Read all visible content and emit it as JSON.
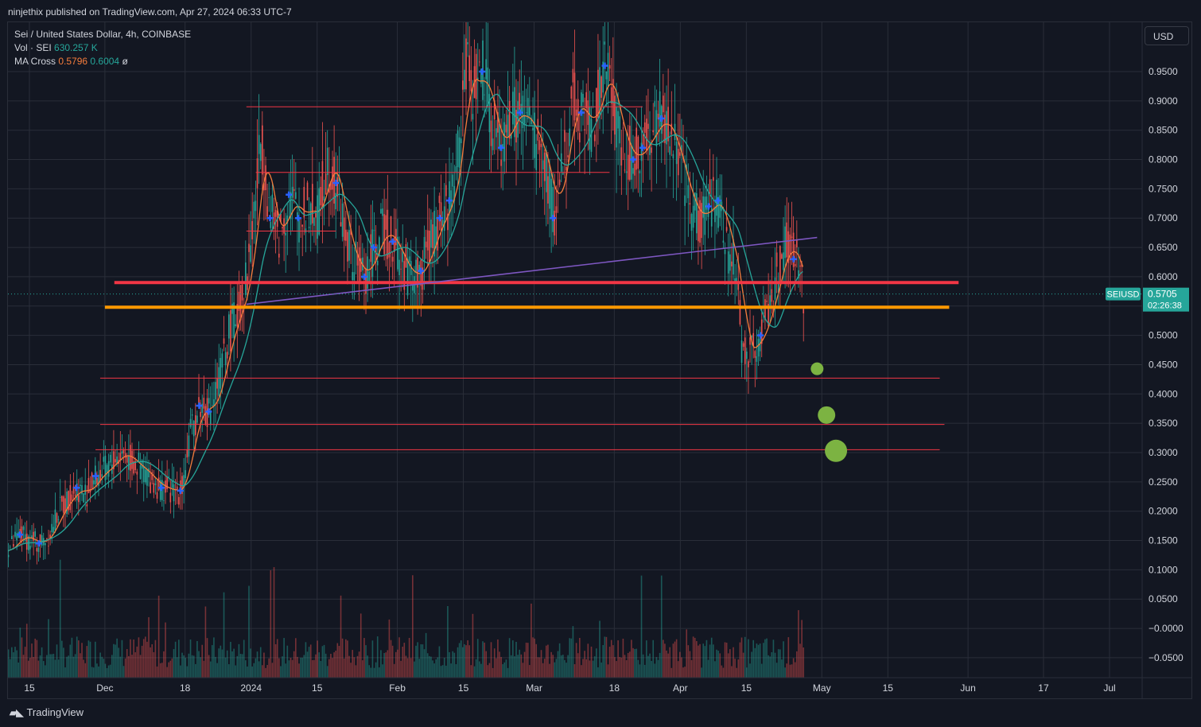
{
  "header": {
    "published_by": "ninjethix published on TradingView.com, Apr 27, 2024 06:33 UTC-7"
  },
  "legend": {
    "symbol": "Sei / United States Dollar, 4h, COINBASE",
    "vol_label": "Vol · SEI",
    "vol_value": "630.257 K",
    "ma_label": "MA Cross",
    "ma_fast": "0.5796",
    "ma_slow": "0.6004",
    "ma_extra": "ø"
  },
  "toolbar": {
    "currency": "USD"
  },
  "price_tag": {
    "symbol": "SEIUSD",
    "price": "0.5705",
    "countdown": "02:26:38"
  },
  "footer": {
    "brand": "TradingView"
  },
  "colors": {
    "background": "#131722",
    "up": "#26a69a",
    "down": "#ef5350",
    "ma_fast": "#f57c3c",
    "ma_slow": "#26a69a",
    "cross_marker": "#2962ff",
    "support_red": "#f23645",
    "support_orange": "#ff9800",
    "trendline": "#7e57c2",
    "target_dot": "#7cb342"
  },
  "chart_data": {
    "type": "candlestick",
    "symbol": "SEIUSD",
    "timeframe": "4h",
    "exchange": "COINBASE",
    "currency": "USD",
    "yaxis": {
      "ticks": [
        "0.9500",
        "0.9000",
        "0.8500",
        "0.8000",
        "0.7500",
        "0.7000",
        "0.6500",
        "0.6000",
        "0.5500",
        "0.5000",
        "0.4500",
        "0.4000",
        "0.3500",
        "0.3000",
        "0.2500",
        "0.2000",
        "0.1500",
        "0.1000",
        "0.0500",
        "−0.0000",
        "−0.0500"
      ],
      "tick_values": [
        0.95,
        0.9,
        0.85,
        0.8,
        0.75,
        0.7,
        0.65,
        0.6,
        0.55,
        0.5,
        0.45,
        0.4,
        0.35,
        0.3,
        0.25,
        0.2,
        0.15,
        0.1,
        0.05,
        0,
        -0.05
      ],
      "range": [
        -0.085,
        1.01
      ]
    },
    "xaxis": {
      "ticks": [
        {
          "label": "15",
          "date": "2023-11-15"
        },
        {
          "label": "Dec",
          "date": "2023-12-01"
        },
        {
          "label": "18",
          "date": "2023-12-18"
        },
        {
          "label": "2024",
          "date": "2024-01-01"
        },
        {
          "label": "15",
          "date": "2024-01-15"
        },
        {
          "label": "Feb",
          "date": "2024-02-01"
        },
        {
          "label": "15",
          "date": "2024-02-15"
        },
        {
          "label": "Mar",
          "date": "2024-03-01"
        },
        {
          "label": "18",
          "date": "2024-03-18"
        },
        {
          "label": "Apr",
          "date": "2024-04-01"
        },
        {
          "label": "15",
          "date": "2024-04-15"
        },
        {
          "label": "May",
          "date": "2024-05-01"
        },
        {
          "label": "15",
          "date": "2024-05-15"
        },
        {
          "label": "Jun",
          "date": "2024-06-01"
        },
        {
          "label": "17",
          "date": "2024-06-17"
        },
        {
          "label": "Jul",
          "date": "2024-07-01"
        }
      ]
    },
    "price_path": [
      [
        "2023-11-09",
        0.128
      ],
      [
        "2023-11-11",
        0.14
      ],
      [
        "2023-11-13",
        0.16
      ],
      [
        "2023-11-15",
        0.15
      ],
      [
        "2023-11-17",
        0.145
      ],
      [
        "2023-11-19",
        0.16
      ],
      [
        "2023-11-21",
        0.2
      ],
      [
        "2023-11-23",
        0.22
      ],
      [
        "2023-11-25",
        0.24
      ],
      [
        "2023-11-27",
        0.23
      ],
      [
        "2023-11-29",
        0.26
      ],
      [
        "2023-12-01",
        0.27
      ],
      [
        "2023-12-03",
        0.29
      ],
      [
        "2023-12-05",
        0.3
      ],
      [
        "2023-12-07",
        0.28
      ],
      [
        "2023-12-09",
        0.27
      ],
      [
        "2023-12-11",
        0.25
      ],
      [
        "2023-12-13",
        0.24
      ],
      [
        "2023-12-15",
        0.235
      ],
      [
        "2023-12-17",
        0.235
      ],
      [
        "2023-12-19",
        0.33
      ],
      [
        "2023-12-21",
        0.38
      ],
      [
        "2023-12-23",
        0.37
      ],
      [
        "2023-12-25",
        0.42
      ],
      [
        "2023-12-27",
        0.5
      ],
      [
        "2023-12-29",
        0.54
      ],
      [
        "2023-12-31",
        0.6
      ],
      [
        "2024-01-02",
        0.75
      ],
      [
        "2024-01-03",
        0.84
      ],
      [
        "2024-01-05",
        0.7
      ],
      [
        "2024-01-07",
        0.67
      ],
      [
        "2024-01-09",
        0.74
      ],
      [
        "2024-01-11",
        0.7
      ],
      [
        "2024-01-13",
        0.72
      ],
      [
        "2024-01-15",
        0.7
      ],
      [
        "2024-01-17",
        0.8
      ],
      [
        "2024-01-19",
        0.76
      ],
      [
        "2024-01-21",
        0.66
      ],
      [
        "2024-01-23",
        0.62
      ],
      [
        "2024-01-25",
        0.6
      ],
      [
        "2024-01-27",
        0.65
      ],
      [
        "2024-01-29",
        0.68
      ],
      [
        "2024-01-31",
        0.66
      ],
      [
        "2024-02-02",
        0.62
      ],
      [
        "2024-02-04",
        0.6
      ],
      [
        "2024-02-06",
        0.61
      ],
      [
        "2024-02-08",
        0.66
      ],
      [
        "2024-02-10",
        0.7
      ],
      [
        "2024-02-12",
        0.73
      ],
      [
        "2024-02-14",
        0.82
      ],
      [
        "2024-02-15",
        0.96
      ],
      [
        "2024-02-17",
        0.92
      ],
      [
        "2024-02-19",
        0.95
      ],
      [
        "2024-02-21",
        0.86
      ],
      [
        "2024-02-23",
        0.82
      ],
      [
        "2024-02-25",
        0.87
      ],
      [
        "2024-02-27",
        0.88
      ],
      [
        "2024-02-29",
        0.86
      ],
      [
        "2024-03-02",
        0.82
      ],
      [
        "2024-03-04",
        0.76
      ],
      [
        "2024-03-05",
        0.7
      ],
      [
        "2024-03-07",
        0.8
      ],
      [
        "2024-03-09",
        0.9
      ],
      [
        "2024-03-11",
        0.88
      ],
      [
        "2024-03-13",
        0.86
      ],
      [
        "2024-03-15",
        0.92
      ],
      [
        "2024-03-16",
        0.96
      ],
      [
        "2024-03-18",
        0.88
      ],
      [
        "2024-03-20",
        0.82
      ],
      [
        "2024-03-22",
        0.8
      ],
      [
        "2024-03-24",
        0.82
      ],
      [
        "2024-03-26",
        0.85
      ],
      [
        "2024-03-28",
        0.87
      ],
      [
        "2024-03-30",
        0.84
      ],
      [
        "2024-04-01",
        0.78
      ],
      [
        "2024-04-03",
        0.72
      ],
      [
        "2024-04-05",
        0.7
      ],
      [
        "2024-04-07",
        0.72
      ],
      [
        "2024-04-09",
        0.73
      ],
      [
        "2024-04-11",
        0.65
      ],
      [
        "2024-04-13",
        0.6
      ],
      [
        "2024-04-14",
        0.47
      ],
      [
        "2024-04-16",
        0.48
      ],
      [
        "2024-04-18",
        0.5
      ],
      [
        "2024-04-20",
        0.56
      ],
      [
        "2024-04-22",
        0.62
      ],
      [
        "2024-04-23",
        0.66
      ],
      [
        "2024-04-25",
        0.63
      ],
      [
        "2024-04-26",
        0.62
      ],
      [
        "2024-04-27",
        0.5705
      ]
    ],
    "horizontal_lines": [
      {
        "name": "support-red",
        "y": 0.59,
        "from": "2023-12-03",
        "to": "2024-05-30",
        "style": "thick",
        "color": "#f23645"
      },
      {
        "name": "support-orange",
        "y": 0.548,
        "from": "2023-12-01",
        "to": "2024-05-28",
        "style": "thick",
        "color": "#ff9800"
      },
      {
        "name": "resistance-1",
        "y": 0.89,
        "from": "2023-12-31",
        "to": "2024-03-24",
        "style": "thin",
        "color": "#f23645"
      },
      {
        "name": "resistance-2",
        "y": 0.778,
        "from": "2024-01-02",
        "to": "2024-03-17",
        "style": "thin",
        "color": "#f23645"
      },
      {
        "name": "level-3",
        "y": 0.678,
        "from": "2023-12-31",
        "to": "2024-01-19",
        "style": "thin",
        "color": "#f23645"
      },
      {
        "name": "level-4",
        "y": 0.427,
        "from": "2023-11-30",
        "to": "2024-05-26",
        "style": "thin",
        "color": "#f23645"
      },
      {
        "name": "level-5",
        "y": 0.348,
        "from": "2023-11-30",
        "to": "2024-05-27",
        "style": "thin",
        "color": "#f23645"
      },
      {
        "name": "level-6",
        "y": 0.305,
        "from": "2023-11-29",
        "to": "2024-05-26",
        "style": "thin",
        "color": "#f23645"
      }
    ],
    "trendline": {
      "from": [
        "2023-12-31",
        0.553
      ],
      "to": [
        "2024-04-30",
        0.667
      ],
      "color": "#7e57c2"
    },
    "target_dots": [
      {
        "date": "2024-04-30",
        "y": 0.443,
        "size": "small"
      },
      {
        "date": "2024-05-02",
        "y": 0.364,
        "size": "medium"
      },
      {
        "date": "2024-05-04",
        "y": 0.303,
        "size": "large"
      }
    ],
    "last_price": 0.5705,
    "ma_fast_last": 0.5796,
    "ma_slow_last": 0.6004
  }
}
